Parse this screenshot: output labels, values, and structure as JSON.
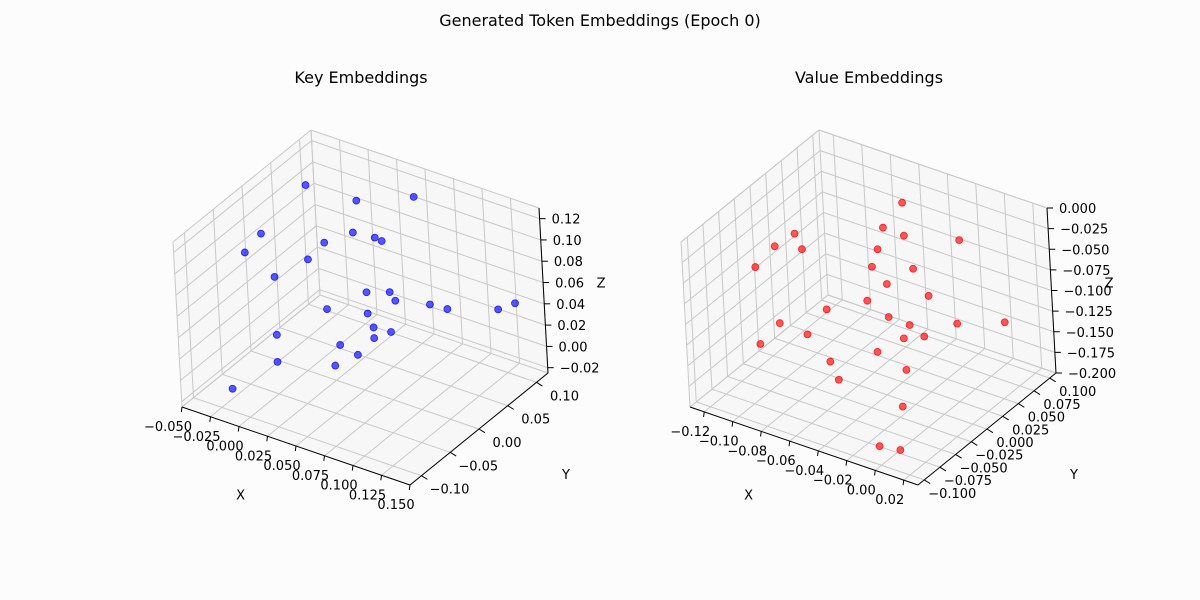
{
  "figure": {
    "suptitle": "Generated Token Embeddings (Epoch 0)"
  },
  "chart_data": [
    {
      "type": "scatter",
      "title": "Key Embeddings",
      "xlabel": "X",
      "ylabel": "Y",
      "zlabel": "Z",
      "xlim": [
        -0.05,
        0.15
      ],
      "ylim": [
        -0.12,
        0.12
      ],
      "zlim": [
        -0.025,
        0.13
      ],
      "xticks": [
        "−0.050",
        "−0.025",
        "0.000",
        "0.025",
        "0.050",
        "0.075",
        "0.100",
        "0.125",
        "0.150"
      ],
      "yticks": [
        "−0.10",
        "−0.05",
        "0.00",
        "0.05",
        "0.10"
      ],
      "zticks": [
        "−0.02",
        "0.00",
        "0.02",
        "0.04",
        "0.06",
        "0.08",
        "0.10",
        "0.12"
      ],
      "color": "#0000ff",
      "points": [
        [
          -0.04,
          -0.02,
          0.08
        ],
        [
          0.03,
          0.04,
          0.128
        ],
        [
          0.06,
          0.08,
          0.125
        ],
        [
          -0.02,
          0.05,
          0.12
        ],
        [
          0.05,
          0.03,
          0.105
        ],
        [
          -0.03,
          -0.01,
          0.097
        ],
        [
          0.01,
          0.02,
          0.09
        ],
        [
          0.02,
          0.05,
          0.09
        ],
        [
          0.04,
          0.06,
          0.085
        ],
        [
          0.0,
          0.01,
          0.075
        ],
        [
          -0.02,
          -0.01,
          0.06
        ],
        [
          0.04,
          0.03,
          0.05
        ],
        [
          0.13,
          0.08,
          0.045
        ],
        [
          0.14,
          0.09,
          0.05
        ],
        [
          0.05,
          0.05,
          0.045
        ],
        [
          0.06,
          0.04,
          0.045
        ],
        [
          0.08,
          0.06,
          0.04
        ],
        [
          0.02,
          0.0,
          0.04
        ],
        [
          0.04,
          0.03,
          0.03
        ],
        [
          0.09,
          0.07,
          0.035
        ],
        [
          0.05,
          0.02,
          0.025
        ],
        [
          -0.01,
          -0.03,
          0.018
        ],
        [
          0.03,
          0.0,
          0.01
        ],
        [
          0.05,
          0.02,
          0.015
        ],
        [
          0.06,
          0.03,
          0.02
        ],
        [
          0.04,
          0.01,
          0.0
        ],
        [
          0.03,
          -0.01,
          -0.005
        ],
        [
          0.0,
          -0.05,
          0.005
        ],
        [
          -0.02,
          -0.09,
          -0.01
        ]
      ]
    },
    {
      "type": "scatter",
      "title": "Value Embeddings",
      "xlabel": "X",
      "ylabel": "Y",
      "zlabel": "Z",
      "xlim": [
        -0.13,
        0.03
      ],
      "ylim": [
        -0.11,
        0.11
      ],
      "zlim": [
        -0.2,
        0.0
      ],
      "xticks": [
        "−0.12",
        "−0.10",
        "−0.08",
        "−0.06",
        "−0.04",
        "−0.02",
        "0.00",
        "0.02"
      ],
      "yticks": [
        "−0.100",
        "−0.075",
        "−0.050",
        "−0.025",
        "0.000",
        "0.025",
        "0.050",
        "0.075",
        "0.100"
      ],
      "zticks": [
        "−0.200",
        "−0.175",
        "−0.150",
        "−0.125",
        "−0.100",
        "−0.075",
        "−0.050",
        "−0.025",
        "0.000"
      ],
      "color": "#ff0000",
      "points": [
        [
          -0.05,
          0.06,
          -0.01
        ],
        [
          -0.1,
          0.0,
          -0.04
        ],
        [
          -0.06,
          0.05,
          -0.04
        ],
        [
          -0.05,
          0.06,
          -0.05
        ],
        [
          -0.02,
          0.08,
          -0.05
        ],
        [
          -0.11,
          -0.01,
          -0.055
        ],
        [
          -0.06,
          0.04,
          -0.06
        ],
        [
          -0.1,
          0.01,
          -0.065
        ],
        [
          -0.06,
          0.03,
          -0.075
        ],
        [
          -0.04,
          0.05,
          -0.078
        ],
        [
          -0.12,
          -0.02,
          -0.08
        ],
        [
          -0.05,
          0.03,
          -0.09
        ],
        [
          -0.06,
          0.02,
          -0.11
        ],
        [
          -0.03,
          0.05,
          -0.105
        ],
        [
          -0.08,
          0.0,
          -0.12
        ],
        [
          -0.05,
          0.03,
          -0.13
        ],
        [
          -0.1,
          -0.03,
          -0.13
        ],
        [
          -0.04,
          0.04,
          -0.14
        ],
        [
          -0.02,
          0.07,
          -0.145
        ],
        [
          0.0,
          0.1,
          -0.15
        ],
        [
          -0.03,
          0.04,
          -0.148
        ],
        [
          -0.09,
          -0.01,
          -0.15
        ],
        [
          -0.04,
          0.03,
          -0.15
        ],
        [
          -0.11,
          -0.04,
          -0.155
        ],
        [
          -0.05,
          0.01,
          -0.16
        ],
        [
          -0.07,
          -0.02,
          -0.165
        ],
        [
          -0.03,
          0.01,
          -0.17
        ],
        [
          -0.06,
          -0.03,
          -0.175
        ],
        [
          -0.02,
          -0.02,
          -0.19
        ],
        [
          -0.01,
          -0.08,
          -0.195
        ],
        [
          0.0,
          -0.07,
          -0.2
        ]
      ]
    }
  ]
}
